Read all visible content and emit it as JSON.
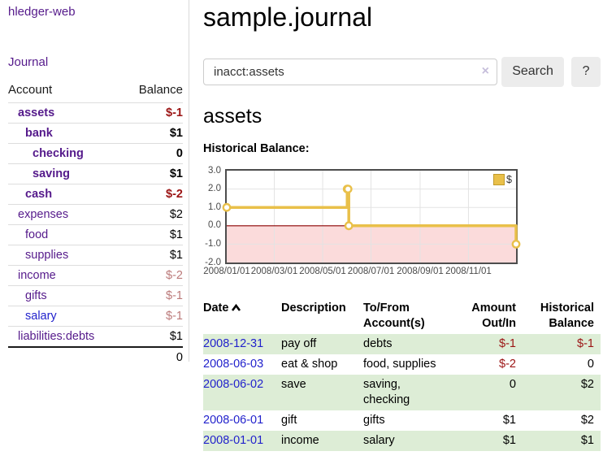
{
  "colors": {
    "purple": "#551a8b",
    "blue_link": "#2222cc",
    "negative": "#9b1414",
    "negative_muted": "#bb7a7a",
    "row_green": "#ddedd6",
    "gold": "#e9c04a",
    "clear_icon": "#c6bedb"
  },
  "sidebar": {
    "brand": "hledger-web",
    "nav": {
      "journal": "Journal"
    },
    "table": {
      "account_header": "Account",
      "balance_header": "Balance",
      "rows": [
        {
          "account": "assets",
          "balance": "$-1",
          "level": 0,
          "bold": true,
          "account_color": "purple",
          "balance_color": "negative"
        },
        {
          "account": "bank",
          "balance": "$1",
          "level": 1,
          "bold": true,
          "account_color": "purple",
          "balance_color": "normal"
        },
        {
          "account": "checking",
          "balance": "0",
          "level": 2,
          "bold": true,
          "account_color": "purple",
          "balance_color": "normal"
        },
        {
          "account": "saving",
          "balance": "$1",
          "level": 2,
          "bold": true,
          "account_color": "purple",
          "balance_color": "normal"
        },
        {
          "account": "cash",
          "balance": "$-2",
          "level": 1,
          "bold": true,
          "account_color": "purple",
          "balance_color": "negative"
        },
        {
          "account": "expenses",
          "balance": "$2",
          "level": 0,
          "bold": false,
          "account_color": "purple",
          "balance_color": "normal"
        },
        {
          "account": "food",
          "balance": "$1",
          "level": 1,
          "bold": false,
          "account_color": "purple",
          "balance_color": "normal"
        },
        {
          "account": "supplies",
          "balance": "$1",
          "level": 1,
          "bold": false,
          "account_color": "purple",
          "balance_color": "normal"
        },
        {
          "account": "income",
          "balance": "$-2",
          "level": 0,
          "bold": false,
          "account_color": "purple",
          "balance_color": "negative-muted"
        },
        {
          "account": "gifts",
          "balance": "$-1",
          "level": 1,
          "bold": false,
          "account_color": "purple",
          "balance_color": "negative-muted"
        },
        {
          "account": "salary",
          "balance": "$-1",
          "level": 1,
          "bold": false,
          "account_color": "blue",
          "balance_color": "negative-muted"
        },
        {
          "account": "liabilities:debts",
          "balance": "$1",
          "level": 0,
          "bold": false,
          "account_color": "purple",
          "balance_color": "normal"
        }
      ],
      "total": "0"
    }
  },
  "main": {
    "title": "sample.journal",
    "search": {
      "value": "inacct:assets",
      "clear_label": "×",
      "button": "Search",
      "help": "?"
    },
    "heading": "assets",
    "chart_title": "Historical Balance:"
  },
  "chart_data": {
    "type": "line",
    "title": "Historical Balance",
    "series": [
      {
        "name": "$",
        "color": "#e9c04a",
        "points": [
          [
            "2008-01-01",
            1
          ],
          [
            "2008-06-01",
            2
          ],
          [
            "2008-06-02",
            2
          ],
          [
            "2008-06-03",
            0
          ],
          [
            "2008-12-31",
            -1
          ]
        ]
      }
    ],
    "x_ticks": [
      "2008/01/01",
      "2008/03/01",
      "2008/05/01",
      "2008/07/01",
      "2008/09/01",
      "2008/11/01"
    ],
    "y_ticks": [
      3.0,
      2.0,
      1.0,
      0.0,
      -1.0,
      -2.0
    ],
    "xlim": [
      "2008-01-01",
      "2008-12-31"
    ],
    "ylim": [
      -2,
      3
    ],
    "grid": true,
    "legend": {
      "label": "$",
      "position": "top-right"
    },
    "negative_region_color": "#fbdbdb",
    "zero_line_color": "#8b0000",
    "grid_color": "#e3e3e3"
  },
  "register": {
    "headers": {
      "date": "Date",
      "description": "Description",
      "accounts": "To/From Account(s)",
      "amount": "Amount Out/In",
      "balance": "Historical Balance"
    },
    "rows": [
      {
        "date": "2008-12-31",
        "description": "pay off",
        "accounts": "debts",
        "amount": "$-1",
        "balance": "$-1",
        "amount_negative": true,
        "balance_negative": true,
        "shaded": true
      },
      {
        "date": "2008-06-03",
        "description": "eat & shop",
        "accounts": "food, supplies",
        "amount": "$-2",
        "balance": "0",
        "amount_negative": true,
        "balance_negative": false,
        "shaded": false
      },
      {
        "date": "2008-06-02",
        "description": "save",
        "accounts": "saving, checking",
        "amount": "0",
        "balance": "$2",
        "amount_negative": false,
        "balance_negative": false,
        "shaded": true
      },
      {
        "date": "2008-06-01",
        "description": "gift",
        "accounts": "gifts",
        "amount": "$1",
        "balance": "$2",
        "amount_negative": false,
        "balance_negative": false,
        "shaded": false
      },
      {
        "date": "2008-01-01",
        "description": "income",
        "accounts": "salary",
        "amount": "$1",
        "balance": "$1",
        "amount_negative": false,
        "balance_negative": false,
        "shaded": true
      }
    ]
  }
}
